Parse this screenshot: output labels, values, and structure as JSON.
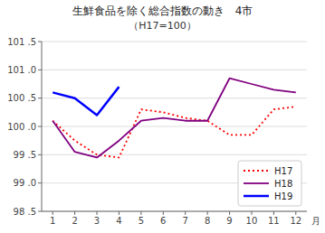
{
  "chart_data": {
    "type": "line",
    "title": "生鮮食品を除く総合指数の動き　4市",
    "subtitle": "（H17=100）",
    "x_label": "月",
    "x": [
      1,
      2,
      3,
      4,
      5,
      6,
      7,
      8,
      9,
      10,
      11,
      12
    ],
    "xlim": [
      0.5,
      12.5
    ],
    "xticks": [
      1,
      2,
      3,
      4,
      5,
      6,
      7,
      8,
      9,
      10,
      11,
      12
    ],
    "ylim": [
      98.5,
      101.5
    ],
    "yticks": [
      {
        "value": 98.5,
        "label": "98 .5"
      },
      {
        "value": 99.0,
        "label": "99 .0"
      },
      {
        "value": 99.5,
        "label": "99 .5"
      },
      {
        "value": 100.0,
        "label": "100 .0"
      },
      {
        "value": 100.5,
        "label": "100 .5"
      },
      {
        "value": 101.0,
        "label": "101 .0"
      },
      {
        "value": 101.5,
        "label": "101 .5"
      }
    ],
    "grid": true,
    "legend": "lower right",
    "series": [
      {
        "name": "H17",
        "color": "#ff0000",
        "line_style": "dotted",
        "values": [
          100.1,
          99.75,
          99.5,
          99.45,
          100.3,
          100.25,
          100.15,
          100.1,
          99.85,
          99.85,
          100.3,
          100.35
        ]
      },
      {
        "name": "H18",
        "color": "#800080",
        "line_style": "solid",
        "values": [
          100.1,
          99.55,
          99.45,
          99.75,
          100.1,
          100.15,
          100.1,
          100.1,
          100.85,
          100.75,
          100.65,
          100.6
        ]
      },
      {
        "name": "H19",
        "color": "#0000ff",
        "line_style": "solid",
        "values": [
          100.6,
          100.5,
          100.2,
          100.7,
          null,
          null,
          null,
          null,
          null,
          null,
          null,
          null
        ]
      }
    ]
  }
}
